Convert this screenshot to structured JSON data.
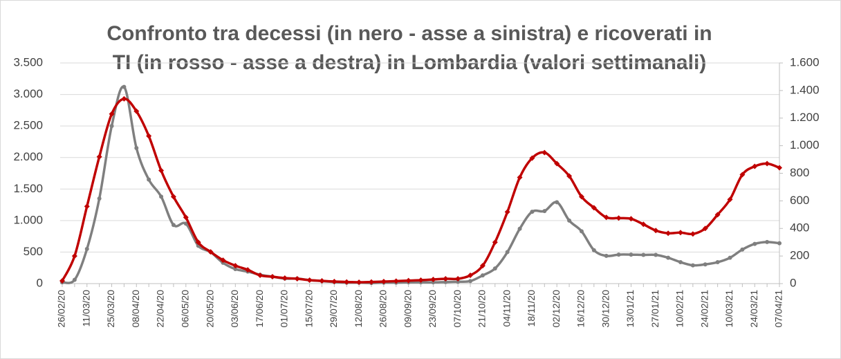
{
  "chart_data": {
    "type": "line",
    "title": [
      "Confronto tra decessi (in nero - asse a sinistra) e ricoverati in",
      "TI (in rosso - asse a destra) in Lombardia (valori settimanali)"
    ],
    "categories": [
      "26/02/20",
      null,
      "11/03/20",
      null,
      "25/03/20",
      null,
      "08/04/20",
      null,
      "22/04/20",
      null,
      "06/05/20",
      null,
      "20/05/20",
      null,
      "03/06/20",
      null,
      "17/06/20",
      null,
      "01/07/20",
      null,
      "15/07/20",
      null,
      "29/07/20",
      null,
      "12/08/20",
      null,
      "26/08/20",
      null,
      "09/09/20",
      null,
      "23/09/20",
      null,
      "07/10/20",
      null,
      "21/10/20",
      null,
      "04/11/20",
      null,
      "18/11/20",
      null,
      "02/12/20",
      null,
      "16/12/20",
      null,
      "30/12/20",
      null,
      "13/01/21",
      null,
      "27/01/21",
      null,
      "10/02/21",
      null,
      "24/02/21",
      null,
      "10/03/21",
      null,
      "24/03/21",
      null,
      "07/04/21"
    ],
    "series": [
      {
        "color": "#7f7f7f",
        "axis": "y",
        "values": [
          20,
          60,
          550,
          1350,
          2500,
          3120,
          2150,
          1650,
          1380,
          930,
          950,
          600,
          500,
          330,
          230,
          190,
          140,
          110,
          80,
          80,
          55,
          40,
          25,
          15,
          15,
          10,
          15,
          15,
          20,
          20,
          20,
          25,
          30,
          40,
          130,
          240,
          500,
          870,
          1140,
          1150,
          1290,
          1000,
          830,
          530,
          440,
          460,
          460,
          455,
          455,
          410,
          340,
          290,
          305,
          340,
          410,
          540,
          630,
          660,
          640
        ]
      },
      {
        "color": "#c00000",
        "axis": "y2",
        "values": [
          20,
          200,
          560,
          920,
          1230,
          1340,
          1250,
          1070,
          820,
          630,
          480,
          300,
          230,
          170,
          130,
          100,
          60,
          50,
          40,
          35,
          25,
          20,
          15,
          12,
          10,
          12,
          15,
          18,
          22,
          25,
          30,
          35,
          35,
          60,
          130,
          300,
          520,
          770,
          910,
          950,
          870,
          780,
          630,
          550,
          480,
          475,
          470,
          430,
          385,
          365,
          370,
          360,
          400,
          500,
          610,
          790,
          850,
          870,
          840
        ]
      }
    ],
    "ylim": [
      0,
      3500
    ],
    "yticks": [
      0,
      500,
      {
        "value": 1000,
        "label": "1.000"
      },
      {
        "value": 1500,
        "label": "1.500"
      },
      {
        "value": 2000,
        "label": "2.000"
      },
      {
        "value": 2500,
        "label": "2.500"
      },
      {
        "value": 3000,
        "label": "3.000"
      },
      {
        "value": 3500,
        "label": "3.500"
      }
    ],
    "y2lim": [
      0,
      1600
    ],
    "y2ticks": [
      0,
      200,
      400,
      600,
      800,
      {
        "value": 1000,
        "label": "1.000"
      },
      {
        "value": 1200,
        "label": "1.200"
      },
      {
        "value": 1400,
        "label": "1.400"
      },
      {
        "value": 1600,
        "label": "1.600"
      }
    ],
    "grid": true
  }
}
